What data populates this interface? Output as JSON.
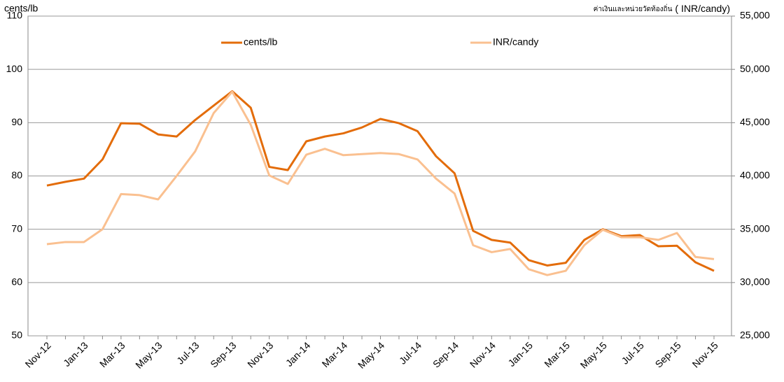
{
  "chart_data": {
    "type": "line",
    "ylabel": "cents/lb",
    "y2label": [
      "ค่าเงินและหน่วยวัดท้องถิ่น",
      "( INR/candy)"
    ],
    "categories": [
      "Nov-12",
      null,
      "Jan-13",
      null,
      "Mar-13",
      null,
      "May-13",
      null,
      "Jul-13",
      null,
      "Sep-13",
      null,
      "Nov-13",
      null,
      "Jan-14",
      null,
      "Mar-14",
      null,
      "May-14",
      null,
      "Jul-14",
      null,
      "Sep-14",
      null,
      "Nov-14",
      null,
      "Jan-15",
      null,
      "Mar-15",
      null,
      "May-15",
      null,
      "Jul-15",
      null,
      "Sep-15",
      null,
      "Nov-15"
    ],
    "series": [
      {
        "name": "cents/lb",
        "color": "#e36c0a",
        "values": [
          78.2,
          78.9,
          79.5,
          83.1,
          89.9,
          89.8,
          87.8,
          87.4,
          90.5,
          93.2,
          95.9,
          92.8,
          81.7,
          81.1,
          86.5,
          87.4,
          88.0,
          89.1,
          90.7,
          89.9,
          88.4,
          83.7,
          80.5,
          69.7,
          68.0,
          67.5,
          64.2,
          63.2,
          63.7,
          68.0,
          70.0,
          68.7,
          68.9,
          66.8,
          66.9,
          63.8,
          62.2
        ]
      },
      {
        "name": "INR/candy",
        "color": "#fac090",
        "axis": "y2",
        "values": [
          33600,
          33800,
          33800,
          35000,
          38300,
          38200,
          37800,
          40000,
          42300,
          45900,
          47900,
          44800,
          40050,
          39250,
          42000,
          42550,
          41950,
          42050,
          42150,
          42050,
          41550,
          39750,
          38350,
          33500,
          32850,
          33150,
          31250,
          30700,
          31100,
          33500,
          34950,
          34250,
          34250,
          34000,
          34650,
          32400,
          32200
        ]
      }
    ],
    "ylim": [
      50,
      110
    ],
    "yticks": [
      50,
      60,
      70,
      80,
      90,
      100,
      110
    ],
    "y2lim": [
      25000,
      55000
    ],
    "y2ticks": [
      {
        "value": 25000,
        "label": "25,000"
      },
      {
        "value": 30000,
        "label": "30,000"
      },
      {
        "value": 35000,
        "label": "35,000"
      },
      {
        "value": 40000,
        "label": "40,000"
      },
      {
        "value": 45000,
        "label": "45,000"
      },
      {
        "value": 50000,
        "label": "50,000"
      },
      {
        "value": 55000,
        "label": "55,000"
      }
    ],
    "grid": true,
    "legend": "top"
  }
}
